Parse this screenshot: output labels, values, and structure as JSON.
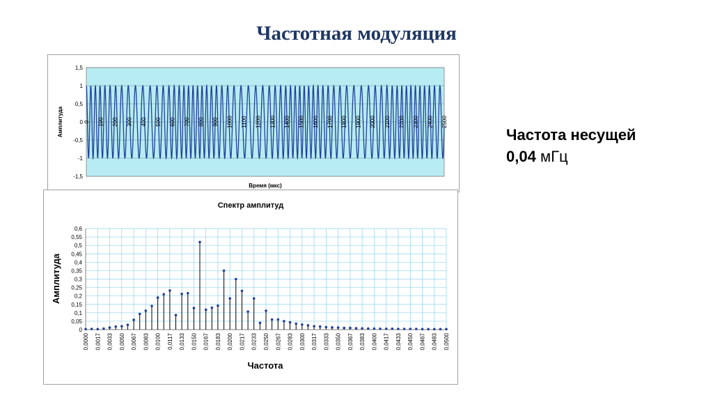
{
  "slide": {
    "title": "Частотная модуляция",
    "carrier_label": "Частота несущей",
    "carrier_value": "0,04",
    "carrier_unit": "мГц"
  },
  "colors": {
    "plot_bg": "#b7ecf3",
    "wave": "#1f3e9a",
    "grid_bottom": "#8fd3ee",
    "stem": "#000000",
    "marker": "#1f3e9a"
  },
  "chart_data": [
    {
      "type": "line",
      "title": "",
      "xlabel": "Время (мкс)",
      "ylabel": "Амплитуда",
      "ylim": [
        -1.5,
        1.5
      ],
      "xlim": [
        0,
        2500
      ],
      "y_ticks": [
        "1,5",
        "1",
        "0,5",
        "0",
        "-0,5",
        "-1",
        "-1,5"
      ],
      "x_ticks": [
        "0",
        "100",
        "200",
        "300",
        "400",
        "500",
        "600",
        "700",
        "800",
        "900",
        "1000",
        "1100",
        "1200",
        "1300",
        "1400",
        "1500",
        "1600",
        "1700",
        "1800",
        "1900",
        "2000",
        "2100",
        "2200",
        "2300",
        "2400",
        "2500"
      ],
      "grid": true,
      "wave": {
        "amplitude": 1,
        "approx_cycles": 64,
        "modulation": "frequency",
        "modulation_cycles": 3.3
      }
    },
    {
      "type": "scatter",
      "title": "Спектр амплитуд",
      "xlabel": "Частота",
      "ylabel": "Амплитуда",
      "ylim": [
        0,
        0.6
      ],
      "y_ticks": [
        "0",
        "0,05",
        "0,1",
        "0,15",
        "0,2",
        "0,25",
        "0,3",
        "0,35",
        "0,4",
        "0,45",
        "0,5",
        "0,55",
        "0,6"
      ],
      "categories": [
        "0,0000",
        "0,0017",
        "0,0033",
        "0,0050",
        "0,0067",
        "0,0083",
        "0,0100",
        "0,0117",
        "0,0133",
        "0,0150",
        "0,0167",
        "0,0183",
        "0,0200",
        "0,0217",
        "0,0233",
        "0,0250",
        "0,0267",
        "0,0283",
        "0,0300",
        "0,0317",
        "0,0333",
        "0,0350",
        "0,0367",
        "0,0383",
        "0,0400",
        "0,0417",
        "0,0433",
        "0,0450",
        "0,0467",
        "0,0483",
        "0,0500"
      ],
      "x": [
        0,
        0.00083,
        0.00167,
        0.0025,
        0.00333,
        0.00417,
        0.005,
        0.00583,
        0.00667,
        0.0075,
        0.00833,
        0.00917,
        0.01,
        0.01083,
        0.01167,
        0.0125,
        0.01333,
        0.01417,
        0.015,
        0.01583,
        0.01667,
        0.0175,
        0.01833,
        0.01917,
        0.02,
        0.02083,
        0.02167,
        0.0225,
        0.02333,
        0.02417,
        0.025,
        0.02583,
        0.02667,
        0.0275,
        0.02833,
        0.02917,
        0.03,
        0.03083,
        0.03167,
        0.0325,
        0.03333,
        0.03417,
        0.035,
        0.03583,
        0.03667,
        0.0375,
        0.03833,
        0.03917,
        0.04,
        0.04083,
        0.04167,
        0.0425,
        0.04333,
        0.04417,
        0.045,
        0.04583,
        0.04667,
        0.0475,
        0.04833,
        0.04917,
        0.05
      ],
      "values": [
        0.003,
        0.004,
        0.003,
        0.006,
        0.012,
        0.018,
        0.02,
        0.028,
        0.058,
        0.093,
        0.112,
        0.14,
        0.19,
        0.21,
        0.232,
        0.086,
        0.212,
        0.216,
        0.128,
        0.52,
        0.118,
        0.13,
        0.142,
        0.35,
        0.185,
        0.3,
        0.23,
        0.107,
        0.185,
        0.04,
        0.112,
        0.06,
        0.06,
        0.05,
        0.043,
        0.035,
        0.03,
        0.025,
        0.02,
        0.018,
        0.015,
        0.013,
        0.012,
        0.01,
        0.01,
        0.008,
        0.007,
        0.006,
        0.006,
        0.005,
        0.005,
        0.005,
        0.004,
        0.004,
        0.004,
        0.004,
        0.003,
        0.003,
        0.003,
        0.003,
        0.003
      ],
      "grid": true
    }
  ]
}
